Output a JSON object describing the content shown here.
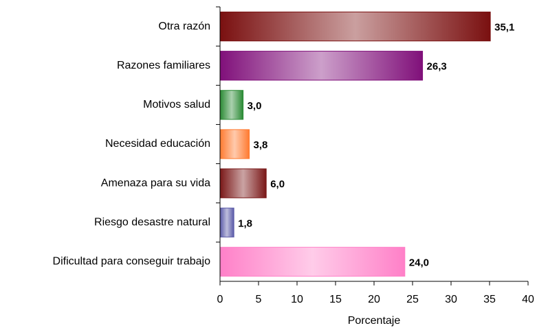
{
  "chart_data": {
    "type": "hbar",
    "x_label": "Porcentaje",
    "categories": [
      "Otra razón",
      "Razones familiares",
      "Motivos salud",
      "Necesidad educación",
      "Amenaza para su vida",
      "Riesgo desastre natural",
      "Dificultad para conseguir trabajo"
    ],
    "values": [
      35.1,
      26.3,
      3.0,
      3.8,
      6.0,
      1.8,
      24.0
    ],
    "value_labels": [
      "35,1",
      "26,3",
      "3,0",
      "3,8",
      "6,0",
      "1,8",
      "24,0"
    ],
    "colors": [
      "#7a1010",
      "#80107a",
      "#2a8a34",
      "#ff7a30",
      "#7a1818",
      "#5a5aa8",
      "#ff80c8"
    ],
    "xlim": [
      0,
      40
    ],
    "xticks": [
      0,
      5,
      10,
      15,
      20,
      25,
      30,
      35,
      40
    ]
  }
}
